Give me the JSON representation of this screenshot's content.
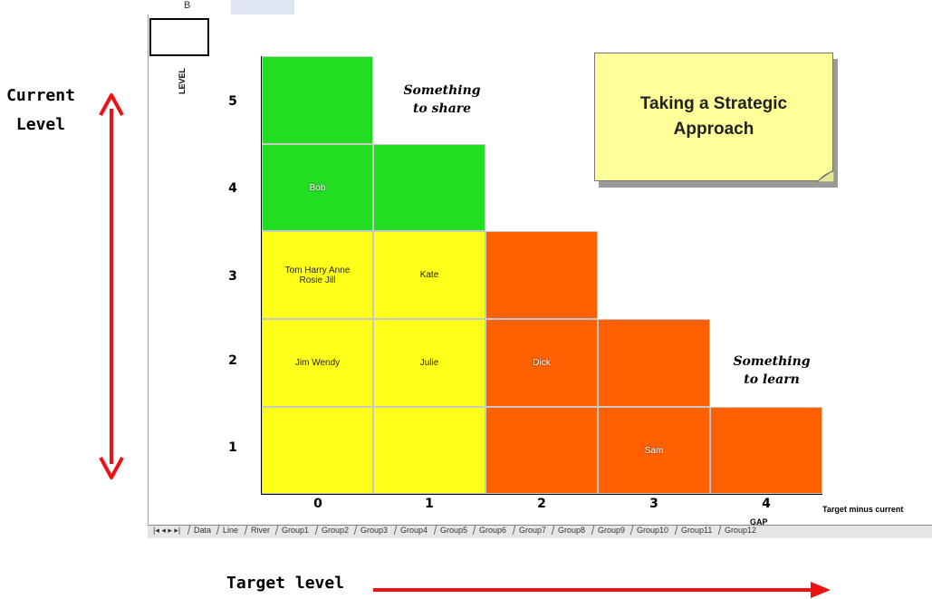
{
  "window": {
    "toolbar_text": "B"
  },
  "grid": {
    "row_labels": [
      "5",
      "4",
      "3",
      "2",
      "1"
    ],
    "col_labels": [
      "0",
      "1",
      "2",
      "3",
      "4"
    ],
    "level_axis_label": "LEVEL",
    "x_axis_title": "Target minus current",
    "gap_label": "GAP",
    "cells": {
      "r4c0": "Bob",
      "r3c0": "Tom Harry Anne Rosie Jill",
      "r3c1": "Kate",
      "r2c0": "Jim Wendy",
      "r2c1": "Julie",
      "r2c2": "Dick",
      "r1c3": "Sam"
    },
    "colors": {
      "green": "#22dd22",
      "yellow": "#ffff1a",
      "orange": "#ff6000"
    }
  },
  "annotations": {
    "share_line1": "Something",
    "share_line2": "to share",
    "learn_line1": "Something",
    "learn_line2": "to learn"
  },
  "sticky_note": {
    "line1": "Taking a Strategic",
    "line2": "Approach"
  },
  "sheet_tabs": [
    "Data",
    "Line",
    "River",
    "Group1",
    "Group2",
    "Group3",
    "Group4",
    "Group5",
    "Group6",
    "Group7",
    "Group8",
    "Group9",
    "Group10",
    "Group11",
    "Group12"
  ],
  "sheet_nav": "|◂ ◂ ▸ ▸|",
  "outer": {
    "current_line1": "Current",
    "current_line2": "Level",
    "target": "Target level",
    "arrow_color": "#ee1111"
  }
}
